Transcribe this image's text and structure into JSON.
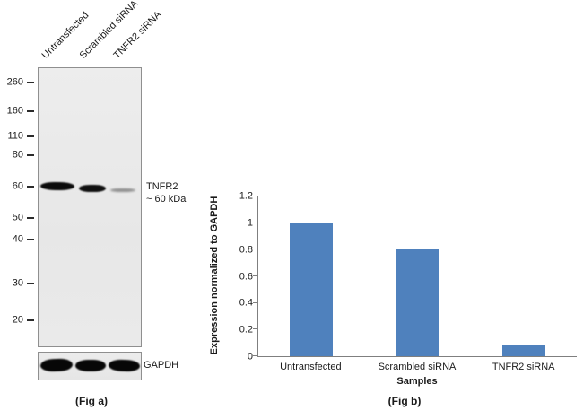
{
  "figure": {
    "fig_a": {
      "caption": "(Fig a)",
      "lane_labels": [
        "Untransfected",
        "Scrambled siRNA",
        "TNFR2 siRNA"
      ],
      "mw_markers": [
        "260",
        "160",
        "110",
        "80",
        "60",
        "50",
        "40",
        "30",
        "20"
      ],
      "target_label": "TNFR2",
      "target_size": "~ 60 kDa",
      "loading_control": "GAPDH"
    },
    "fig_b": {
      "caption": "(Fig b)"
    }
  },
  "chart_data": {
    "type": "bar",
    "categories": [
      "Untransfected",
      "Scrambled siRNA",
      "TNFR2 siRNA"
    ],
    "values": [
      1,
      0.81,
      0.08
    ],
    "title": "",
    "xlabel": "Samples",
    "ylabel": "Expression normalized to GAPDH",
    "ylim": [
      0,
      1.2
    ],
    "yticks": [
      0,
      0.2,
      0.4,
      0.6,
      0.8,
      1,
      1.2
    ],
    "bar_color": "#4f81bd",
    "grid": false,
    "legend": "none"
  }
}
